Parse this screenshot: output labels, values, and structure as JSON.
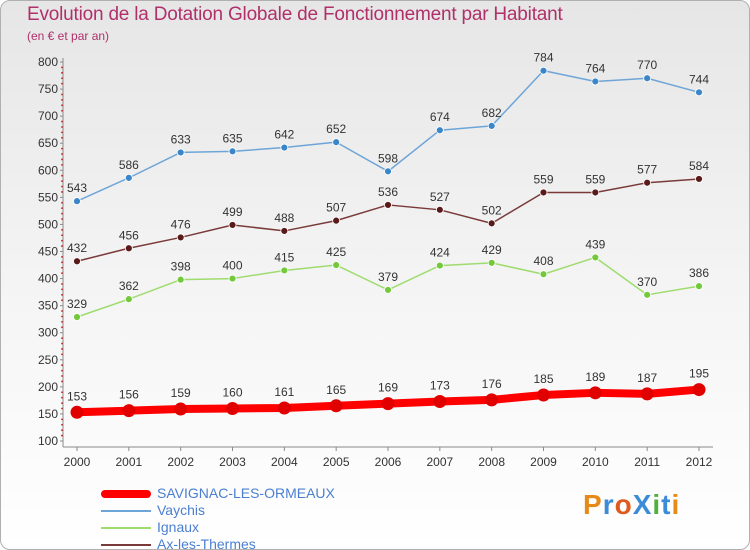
{
  "header": {
    "title": "Evolution de la Dotation Globale de Fonctionnement par Habitant",
    "subtitle": "(en € et par an)"
  },
  "chart_data": {
    "type": "line",
    "title": "Evolution de la Dotation Globale de Fonctionnement par Habitant",
    "subtitle": "(en € et par an)",
    "xlabel": "",
    "ylabel": "",
    "x": [
      "2000",
      "2001",
      "2002",
      "2003",
      "2004",
      "2005",
      "2006",
      "2007",
      "2008",
      "2009",
      "2010",
      "2011",
      "2012"
    ],
    "ylim": [
      100,
      800
    ],
    "yticks": [
      100,
      150,
      200,
      250,
      300,
      350,
      400,
      450,
      500,
      550,
      600,
      650,
      700,
      750,
      800
    ],
    "grid": false,
    "legend_position": "bottom-left",
    "series": [
      {
        "name": "SAVIGNAC-LES-ORMEAUX",
        "color": "#ff0000",
        "marker": "#e00000",
        "values": [
          153,
          156,
          159,
          160,
          161,
          165,
          169,
          173,
          176,
          185,
          189,
          187,
          195
        ]
      },
      {
        "name": "Vaychis",
        "color": "#6ea5d8",
        "marker": "#3a86c8",
        "values": [
          543,
          586,
          633,
          635,
          642,
          652,
          598,
          674,
          682,
          784,
          764,
          770,
          744
        ]
      },
      {
        "name": "Ignaux",
        "color": "#9fdc6e",
        "marker": "#74c83c",
        "values": [
          329,
          362,
          398,
          400,
          415,
          425,
          379,
          424,
          429,
          408,
          439,
          370,
          386
        ]
      },
      {
        "name": "Ax-les-Thermes",
        "color": "#7a3a3a",
        "marker": "#5a1a1a",
        "values": [
          432,
          456,
          476,
          499,
          488,
          507,
          536,
          527,
          502,
          559,
          559,
          577,
          584
        ]
      }
    ]
  },
  "legend": {
    "items": [
      {
        "label": "SAVIGNAC-LES-ORMEAUX",
        "color": "#ff0000"
      },
      {
        "label": "Vaychis",
        "color": "#6ea5d8"
      },
      {
        "label": "Ignaux",
        "color": "#9fdc6e"
      },
      {
        "label": "Ax-les-Thermes",
        "color": "#7a3a3a"
      }
    ]
  },
  "logo": {
    "text": "Proxiti"
  }
}
